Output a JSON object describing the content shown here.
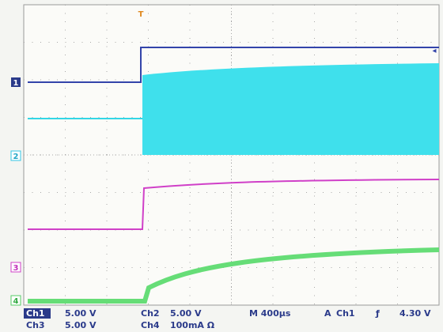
{
  "trigger_marker": "T",
  "channel_markers": [
    "1",
    "2",
    "3",
    "4"
  ],
  "status": {
    "ch1": {
      "label": "Ch1",
      "scale": "5.00 V"
    },
    "ch2": {
      "label": "Ch2",
      "scale": "5.00 V"
    },
    "timebase": "M 400µs",
    "trigger": {
      "mode": "A",
      "source": "Ch1",
      "slope": "ƒ",
      "level": "4.30 V"
    },
    "ch3": {
      "label": "Ch3",
      "scale": "5.00 V"
    },
    "ch4": {
      "label": "Ch4",
      "scale": "100mA Ω"
    }
  }
}
